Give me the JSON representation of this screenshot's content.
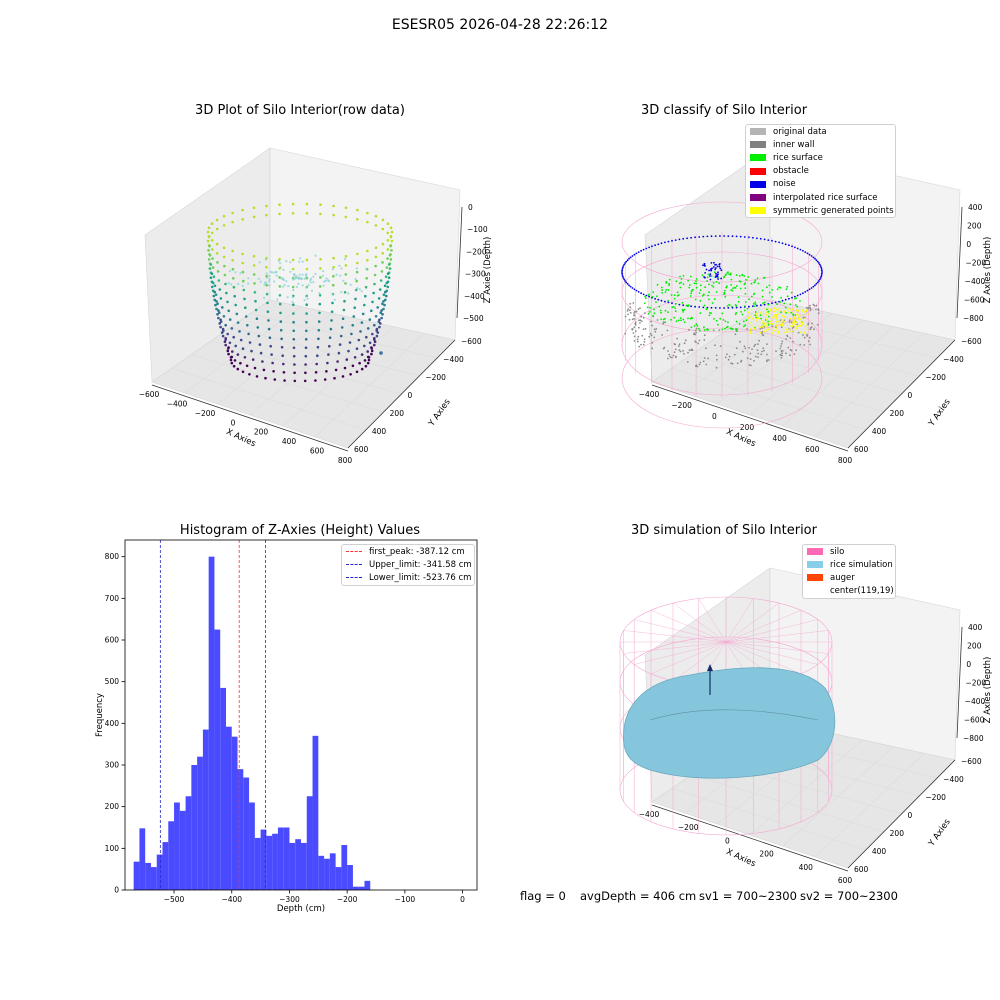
{
  "suptitle": "ESESR05 2026-04-28 22:26:12",
  "colors": {
    "hist_bar": "#4a4aff",
    "peak_line": "#ff3030",
    "limit_line": "#2828c8",
    "pane": "#f2f2f2",
    "grid": "#dcdcdc",
    "wire": "#f5a7d2",
    "rice": "#86c6dc"
  },
  "plot1": {
    "title": "3D Plot of Silo Interior(row data)",
    "xlabel": "X Axies",
    "ylabel": "Y Axies",
    "zlabel": "Z Axies (Depth)",
    "xticks": [
      "−600",
      "−400",
      "−200",
      "0",
      "200",
      "400",
      "600",
      "800"
    ],
    "yticks": [
      "600",
      "400",
      "200",
      "0",
      "−200",
      "−400",
      "−600"
    ],
    "zticks": [
      "0",
      "−100",
      "−200",
      "−300",
      "−400",
      "−500"
    ]
  },
  "plot2": {
    "title": "3D classify of Silo Interior",
    "xlabel": "X Axies",
    "ylabel": "Y Axies",
    "zlabel": "Z Axies (Depth)",
    "xticks": [
      "−400",
      "−200",
      "0",
      "200",
      "400",
      "600",
      "800"
    ],
    "yticks": [
      "600",
      "400",
      "200",
      "0",
      "−200",
      "−400",
      "−600"
    ],
    "zticks": [
      "400",
      "200",
      "0",
      "−200",
      "−400",
      "−600",
      "−800"
    ],
    "legend": [
      {
        "label": "original data",
        "color": "#b4b4b4"
      },
      {
        "label": "inner wall",
        "color": "#808080"
      },
      {
        "label": "rice surface",
        "color": "#00ee00"
      },
      {
        "label": "obstacle",
        "color": "#ff0000"
      },
      {
        "label": "noise",
        "color": "#0000e6"
      },
      {
        "label": "interpolated rice surface",
        "color": "#800080"
      },
      {
        "label": "symmetric generated points",
        "color": "#ffff00"
      }
    ]
  },
  "plot4": {
    "title": "3D simulation of Silo Interior",
    "xlabel": "X Axies",
    "ylabel": "Y Axies",
    "zlabel": "Z Axies (Depth)",
    "xticks": [
      "−400",
      "−200",
      "0",
      "200",
      "400",
      "600"
    ],
    "yticks": [
      "600",
      "400",
      "200",
      "0",
      "−200",
      "−400",
      "−600"
    ],
    "zticks": [
      "400",
      "200",
      "0",
      "−200",
      "−400",
      "−600",
      "−800"
    ],
    "legend": [
      {
        "label": "silo",
        "color": "#ff69b4"
      },
      {
        "label": "rice simulation",
        "color": "#87ceeb"
      },
      {
        "label": "auger",
        "color": "#ff4500"
      },
      {
        "label": "center(119,19)",
        "color": "#ffffff"
      }
    ]
  },
  "status": {
    "flag": "flag = 0",
    "avg": "avgDepth = 406 cm",
    "sv1": "sv1 = 700~2300",
    "sv2": "sv2 = 700~2300"
  },
  "chart_data": {
    "type": "bar",
    "title": "Histogram of Z-Axies (Height) Values",
    "xlabel": "Depth (cm)",
    "ylabel": "Frequency",
    "xlim": [
      -585,
      25
    ],
    "ylim": [
      0,
      840
    ],
    "xticks": [
      -500,
      -400,
      -300,
      -200,
      -100,
      0
    ],
    "yticks": [
      0,
      100,
      200,
      300,
      400,
      500,
      600,
      700,
      800
    ],
    "bin_start": -570,
    "bin_width": 10,
    "values": [
      68,
      148,
      65,
      55,
      85,
      115,
      165,
      210,
      190,
      225,
      300,
      320,
      385,
      800,
      625,
      485,
      392,
      368,
      290,
      270,
      210,
      125,
      145,
      130,
      135,
      150,
      150,
      113,
      122,
      113,
      225,
      370,
      82,
      75,
      88,
      55,
      108,
      60,
      8,
      8,
      22
    ],
    "tick_labels": [
      "−500",
      "−400",
      "−300",
      "−200",
      "−100",
      "0"
    ],
    "ytick_labels": [
      "0",
      "100",
      "200",
      "300",
      "400",
      "500",
      "600",
      "700",
      "800"
    ],
    "lines": [
      {
        "label": "first_peak: -387.12 cm",
        "x": -387.12,
        "color": "#ff3030"
      },
      {
        "label": "Upper_limit: -341.58 cm",
        "x": -341.58,
        "color": "#2828c8"
      },
      {
        "label": "Lower_limit: -523.76 cm",
        "x": -523.76,
        "color": "#2828c8"
      }
    ]
  }
}
